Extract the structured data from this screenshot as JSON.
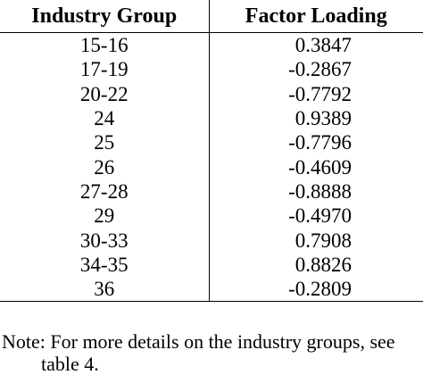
{
  "table": {
    "headers": [
      "Industry Group",
      "Factor Loading"
    ],
    "rows": [
      {
        "group": "15-16",
        "loading": "0.3847"
      },
      {
        "group": "17-19",
        "loading": "-0.2867"
      },
      {
        "group": "20-22",
        "loading": "-0.7792"
      },
      {
        "group": "24",
        "loading": "0.9389"
      },
      {
        "group": "25",
        "loading": "-0.7796"
      },
      {
        "group": "26",
        "loading": "-0.4609"
      },
      {
        "group": "27-28",
        "loading": "-0.8888"
      },
      {
        "group": "29",
        "loading": "-0.4970"
      },
      {
        "group": "30-33",
        "loading": "0.7908"
      },
      {
        "group": "34-35",
        "loading": "0.8826"
      },
      {
        "group": "36",
        "loading": "-0.2809"
      }
    ]
  },
  "note": {
    "line1": "Note: For more details on the industry groups, see",
    "line2": "table 4."
  }
}
